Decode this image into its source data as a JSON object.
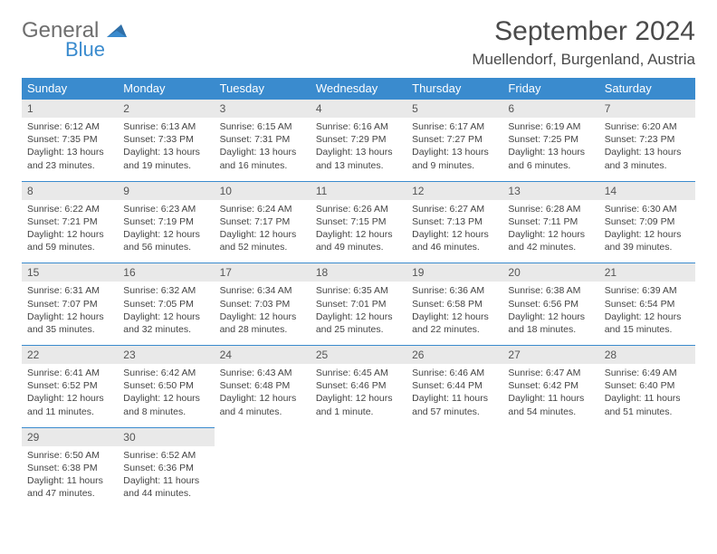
{
  "logo": {
    "general": "General",
    "blue": "Blue"
  },
  "title": "September 2024",
  "location": "Muellendorf, Burgenland, Austria",
  "colors": {
    "header_bg": "#3a8bce",
    "header_text": "#ffffff",
    "daynum_bg": "#e9e9e9",
    "border": "#3a8bce",
    "text": "#444444"
  },
  "weekdays": [
    "Sunday",
    "Monday",
    "Tuesday",
    "Wednesday",
    "Thursday",
    "Friday",
    "Saturday"
  ],
  "weeks": [
    [
      {
        "num": "1",
        "sunrise": "Sunrise: 6:12 AM",
        "sunset": "Sunset: 7:35 PM",
        "day1": "Daylight: 13 hours",
        "day2": "and 23 minutes."
      },
      {
        "num": "2",
        "sunrise": "Sunrise: 6:13 AM",
        "sunset": "Sunset: 7:33 PM",
        "day1": "Daylight: 13 hours",
        "day2": "and 19 minutes."
      },
      {
        "num": "3",
        "sunrise": "Sunrise: 6:15 AM",
        "sunset": "Sunset: 7:31 PM",
        "day1": "Daylight: 13 hours",
        "day2": "and 16 minutes."
      },
      {
        "num": "4",
        "sunrise": "Sunrise: 6:16 AM",
        "sunset": "Sunset: 7:29 PM",
        "day1": "Daylight: 13 hours",
        "day2": "and 13 minutes."
      },
      {
        "num": "5",
        "sunrise": "Sunrise: 6:17 AM",
        "sunset": "Sunset: 7:27 PM",
        "day1": "Daylight: 13 hours",
        "day2": "and 9 minutes."
      },
      {
        "num": "6",
        "sunrise": "Sunrise: 6:19 AM",
        "sunset": "Sunset: 7:25 PM",
        "day1": "Daylight: 13 hours",
        "day2": "and 6 minutes."
      },
      {
        "num": "7",
        "sunrise": "Sunrise: 6:20 AM",
        "sunset": "Sunset: 7:23 PM",
        "day1": "Daylight: 13 hours",
        "day2": "and 3 minutes."
      }
    ],
    [
      {
        "num": "8",
        "sunrise": "Sunrise: 6:22 AM",
        "sunset": "Sunset: 7:21 PM",
        "day1": "Daylight: 12 hours",
        "day2": "and 59 minutes."
      },
      {
        "num": "9",
        "sunrise": "Sunrise: 6:23 AM",
        "sunset": "Sunset: 7:19 PM",
        "day1": "Daylight: 12 hours",
        "day2": "and 56 minutes."
      },
      {
        "num": "10",
        "sunrise": "Sunrise: 6:24 AM",
        "sunset": "Sunset: 7:17 PM",
        "day1": "Daylight: 12 hours",
        "day2": "and 52 minutes."
      },
      {
        "num": "11",
        "sunrise": "Sunrise: 6:26 AM",
        "sunset": "Sunset: 7:15 PM",
        "day1": "Daylight: 12 hours",
        "day2": "and 49 minutes."
      },
      {
        "num": "12",
        "sunrise": "Sunrise: 6:27 AM",
        "sunset": "Sunset: 7:13 PM",
        "day1": "Daylight: 12 hours",
        "day2": "and 46 minutes."
      },
      {
        "num": "13",
        "sunrise": "Sunrise: 6:28 AM",
        "sunset": "Sunset: 7:11 PM",
        "day1": "Daylight: 12 hours",
        "day2": "and 42 minutes."
      },
      {
        "num": "14",
        "sunrise": "Sunrise: 6:30 AM",
        "sunset": "Sunset: 7:09 PM",
        "day1": "Daylight: 12 hours",
        "day2": "and 39 minutes."
      }
    ],
    [
      {
        "num": "15",
        "sunrise": "Sunrise: 6:31 AM",
        "sunset": "Sunset: 7:07 PM",
        "day1": "Daylight: 12 hours",
        "day2": "and 35 minutes."
      },
      {
        "num": "16",
        "sunrise": "Sunrise: 6:32 AM",
        "sunset": "Sunset: 7:05 PM",
        "day1": "Daylight: 12 hours",
        "day2": "and 32 minutes."
      },
      {
        "num": "17",
        "sunrise": "Sunrise: 6:34 AM",
        "sunset": "Sunset: 7:03 PM",
        "day1": "Daylight: 12 hours",
        "day2": "and 28 minutes."
      },
      {
        "num": "18",
        "sunrise": "Sunrise: 6:35 AM",
        "sunset": "Sunset: 7:01 PM",
        "day1": "Daylight: 12 hours",
        "day2": "and 25 minutes."
      },
      {
        "num": "19",
        "sunrise": "Sunrise: 6:36 AM",
        "sunset": "Sunset: 6:58 PM",
        "day1": "Daylight: 12 hours",
        "day2": "and 22 minutes."
      },
      {
        "num": "20",
        "sunrise": "Sunrise: 6:38 AM",
        "sunset": "Sunset: 6:56 PM",
        "day1": "Daylight: 12 hours",
        "day2": "and 18 minutes."
      },
      {
        "num": "21",
        "sunrise": "Sunrise: 6:39 AM",
        "sunset": "Sunset: 6:54 PM",
        "day1": "Daylight: 12 hours",
        "day2": "and 15 minutes."
      }
    ],
    [
      {
        "num": "22",
        "sunrise": "Sunrise: 6:41 AM",
        "sunset": "Sunset: 6:52 PM",
        "day1": "Daylight: 12 hours",
        "day2": "and 11 minutes."
      },
      {
        "num": "23",
        "sunrise": "Sunrise: 6:42 AM",
        "sunset": "Sunset: 6:50 PM",
        "day1": "Daylight: 12 hours",
        "day2": "and 8 minutes."
      },
      {
        "num": "24",
        "sunrise": "Sunrise: 6:43 AM",
        "sunset": "Sunset: 6:48 PM",
        "day1": "Daylight: 12 hours",
        "day2": "and 4 minutes."
      },
      {
        "num": "25",
        "sunrise": "Sunrise: 6:45 AM",
        "sunset": "Sunset: 6:46 PM",
        "day1": "Daylight: 12 hours",
        "day2": "and 1 minute."
      },
      {
        "num": "26",
        "sunrise": "Sunrise: 6:46 AM",
        "sunset": "Sunset: 6:44 PM",
        "day1": "Daylight: 11 hours",
        "day2": "and 57 minutes."
      },
      {
        "num": "27",
        "sunrise": "Sunrise: 6:47 AM",
        "sunset": "Sunset: 6:42 PM",
        "day1": "Daylight: 11 hours",
        "day2": "and 54 minutes."
      },
      {
        "num": "28",
        "sunrise": "Sunrise: 6:49 AM",
        "sunset": "Sunset: 6:40 PM",
        "day1": "Daylight: 11 hours",
        "day2": "and 51 minutes."
      }
    ],
    [
      {
        "num": "29",
        "sunrise": "Sunrise: 6:50 AM",
        "sunset": "Sunset: 6:38 PM",
        "day1": "Daylight: 11 hours",
        "day2": "and 47 minutes."
      },
      {
        "num": "30",
        "sunrise": "Sunrise: 6:52 AM",
        "sunset": "Sunset: 6:36 PM",
        "day1": "Daylight: 11 hours",
        "day2": "and 44 minutes."
      },
      null,
      null,
      null,
      null,
      null
    ]
  ]
}
